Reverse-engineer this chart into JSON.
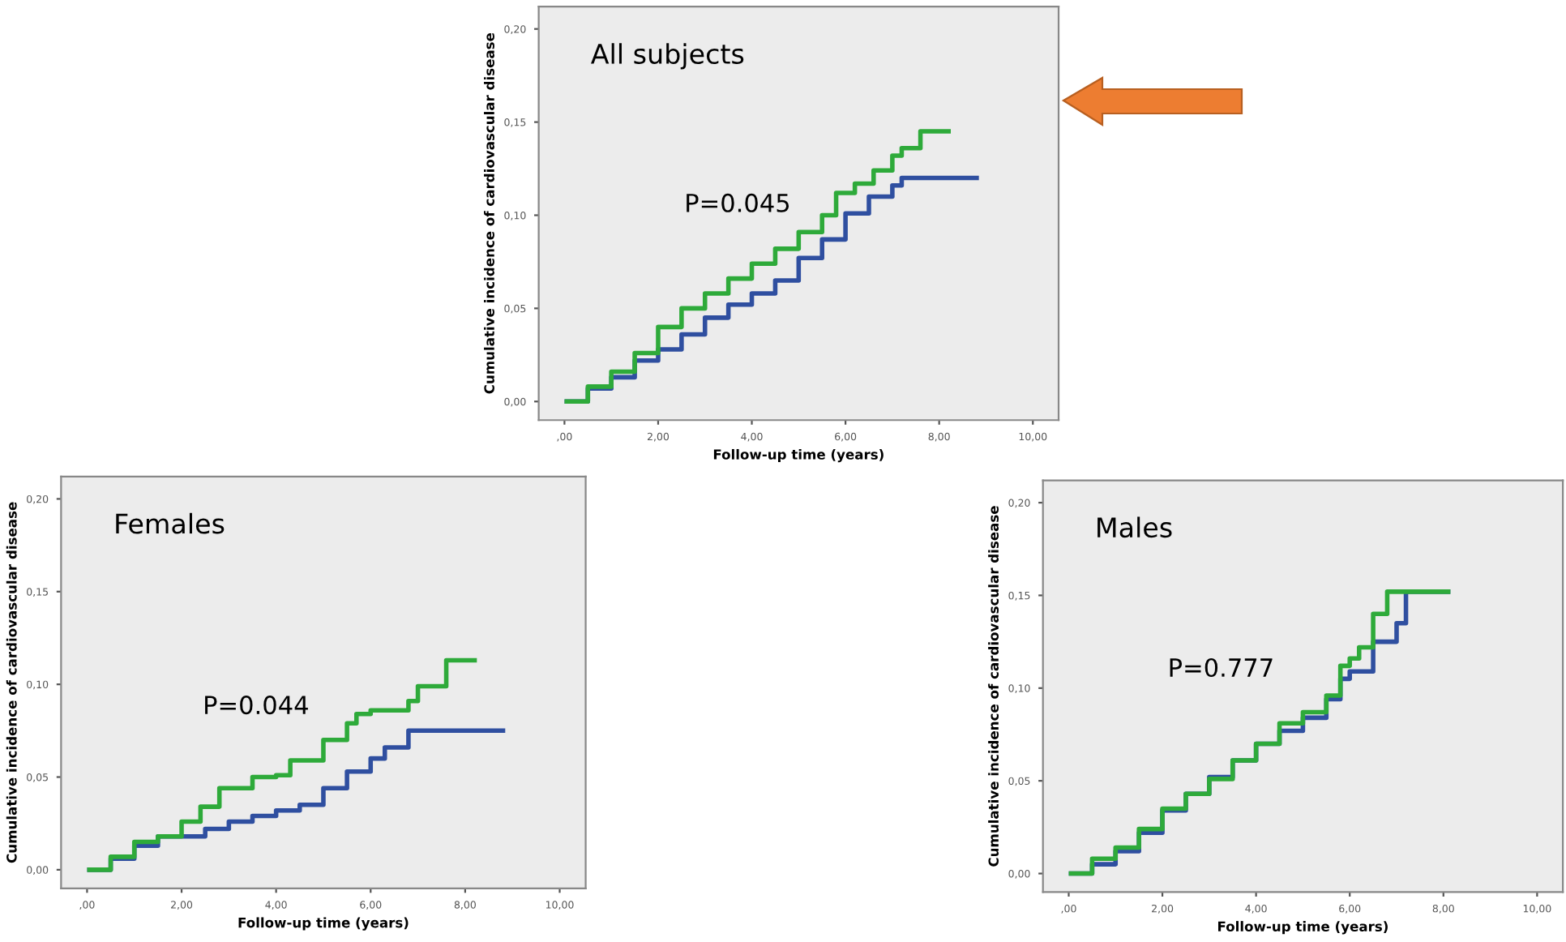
{
  "chart_data": [
    {
      "type": "step",
      "title": "All subjects",
      "xlabel": "Follow-up time (years)",
      "ylabel": "Cumulative incidence of cardiovascular disease",
      "annotations": [
        "P=0.045"
      ],
      "xlim": [
        -0.55,
        10.55
      ],
      "ylim": [
        -0.01,
        0.212
      ],
      "xticks": [
        {
          "value": 0,
          "label": ",00"
        },
        {
          "value": 2,
          "label": "2,00"
        },
        {
          "value": 4,
          "label": "4,00"
        },
        {
          "value": 6,
          "label": "6,00"
        },
        {
          "value": 8,
          "label": "8,00"
        },
        {
          "value": 10,
          "label": "10,00"
        }
      ],
      "yticks": [
        {
          "value": 0,
          "label": "0,00"
        },
        {
          "value": 0.05,
          "label": "0,05"
        },
        {
          "value": 0.1,
          "label": "0,10"
        },
        {
          "value": 0.15,
          "label": "0,15"
        },
        {
          "value": 0.2,
          "label": "0,20"
        }
      ],
      "grid": false,
      "legend": false,
      "series": [
        {
          "color": "#2f4fa0",
          "x": [
            0.05,
            0.5,
            1,
            1.5,
            2,
            2.5,
            3,
            3.5,
            4,
            4.5,
            5,
            5.5,
            6,
            6.5,
            7,
            7.2,
            8.8
          ],
          "values": [
            0,
            0.007,
            0.013,
            0.022,
            0.028,
            0.036,
            0.045,
            0.052,
            0.058,
            0.065,
            0.077,
            0.087,
            0.101,
            0.11,
            0.116,
            0.12,
            0.12
          ]
        },
        {
          "color": "#2eaa3a",
          "x": [
            0.05,
            0.5,
            1,
            1.5,
            2,
            2.5,
            3,
            3.5,
            4,
            4.5,
            5,
            5.5,
            5.8,
            6.2,
            6.6,
            7,
            7.2,
            7.6,
            8.2
          ],
          "values": [
            0,
            0.008,
            0.016,
            0.026,
            0.04,
            0.05,
            0.058,
            0.066,
            0.074,
            0.082,
            0.091,
            0.1,
            0.112,
            0.117,
            0.124,
            0.132,
            0.136,
            0.145,
            0.145
          ]
        }
      ]
    },
    {
      "type": "step",
      "title": "Females",
      "xlabel": "Follow-up time (years)",
      "ylabel": "Cumulative incidence of cardiovascular disease",
      "annotations": [
        "P=0.044"
      ],
      "xlim": [
        -0.55,
        10.55
      ],
      "ylim": [
        -0.01,
        0.212
      ],
      "xticks": [
        {
          "value": 0,
          "label": ",00"
        },
        {
          "value": 2,
          "label": "2,00"
        },
        {
          "value": 4,
          "label": "4,00"
        },
        {
          "value": 6,
          "label": "6,00"
        },
        {
          "value": 8,
          "label": "8,00"
        },
        {
          "value": 10,
          "label": "10,00"
        }
      ],
      "yticks": [
        {
          "value": 0,
          "label": "0,00"
        },
        {
          "value": 0.05,
          "label": "0,05"
        },
        {
          "value": 0.1,
          "label": "0,10"
        },
        {
          "value": 0.15,
          "label": "0,15"
        },
        {
          "value": 0.2,
          "label": "0,20"
        }
      ],
      "grid": false,
      "legend": false,
      "series": [
        {
          "color": "#2f4fa0",
          "x": [
            0.05,
            0.5,
            1,
            1.5,
            2,
            2.5,
            3,
            3.5,
            4,
            4.5,
            5,
            5.5,
            6,
            6.3,
            6.8,
            8.8
          ],
          "values": [
            0,
            0.006,
            0.013,
            0.018,
            0.018,
            0.022,
            0.026,
            0.029,
            0.032,
            0.035,
            0.044,
            0.053,
            0.06,
            0.066,
            0.075,
            0.075
          ]
        },
        {
          "color": "#2eaa3a",
          "x": [
            0.05,
            0.5,
            1,
            1.5,
            2,
            2.4,
            2.8,
            3.5,
            4,
            4.3,
            5,
            5.5,
            5.7,
            6,
            6.8,
            7,
            7.6,
            8.2
          ],
          "values": [
            0,
            0.007,
            0.015,
            0.018,
            0.026,
            0.034,
            0.044,
            0.05,
            0.051,
            0.059,
            0.07,
            0.079,
            0.084,
            0.086,
            0.091,
            0.099,
            0.113,
            0.113
          ]
        }
      ]
    },
    {
      "type": "step",
      "title": "Males",
      "xlabel": "Follow-up time (years)",
      "ylabel": "Cumulative incidence of cardiovascular disease",
      "annotations": [
        "P=0.777"
      ],
      "xlim": [
        -0.55,
        10.55
      ],
      "ylim": [
        -0.01,
        0.212
      ],
      "xticks": [
        {
          "value": 0,
          "label": ",00"
        },
        {
          "value": 2,
          "label": "2,00"
        },
        {
          "value": 4,
          "label": "4,00"
        },
        {
          "value": 6,
          "label": "6,00"
        },
        {
          "value": 8,
          "label": "8,00"
        },
        {
          "value": 10,
          "label": "10,00"
        }
      ],
      "yticks": [
        {
          "value": 0,
          "label": "0,00"
        },
        {
          "value": 0.05,
          "label": "0,05"
        },
        {
          "value": 0.1,
          "label": "0,10"
        },
        {
          "value": 0.15,
          "label": "0,15"
        },
        {
          "value": 0.2,
          "label": "0,20"
        }
      ],
      "grid": false,
      "legend": false,
      "series": [
        {
          "color": "#2f4fa0",
          "x": [
            0.05,
            0.5,
            1,
            1.5,
            2,
            2.5,
            3,
            3.5,
            4,
            4.5,
            5,
            5.5,
            5.8,
            6,
            6.5,
            7,
            7.2,
            8.1
          ],
          "values": [
            0,
            0.005,
            0.012,
            0.022,
            0.034,
            0.043,
            0.052,
            0.061,
            0.07,
            0.077,
            0.084,
            0.094,
            0.105,
            0.109,
            0.125,
            0.135,
            0.152,
            0.152
          ]
        },
        {
          "color": "#2eaa3a",
          "x": [
            0.05,
            0.5,
            1,
            1.5,
            2,
            2.5,
            3,
            3.5,
            4,
            4.5,
            5,
            5.5,
            5.8,
            6,
            6.2,
            6.5,
            6.8,
            8.1
          ],
          "values": [
            0,
            0.008,
            0.014,
            0.024,
            0.035,
            0.043,
            0.051,
            0.061,
            0.07,
            0.081,
            0.087,
            0.096,
            0.112,
            0.116,
            0.122,
            0.14,
            0.152,
            0.152
          ]
        }
      ]
    }
  ]
}
